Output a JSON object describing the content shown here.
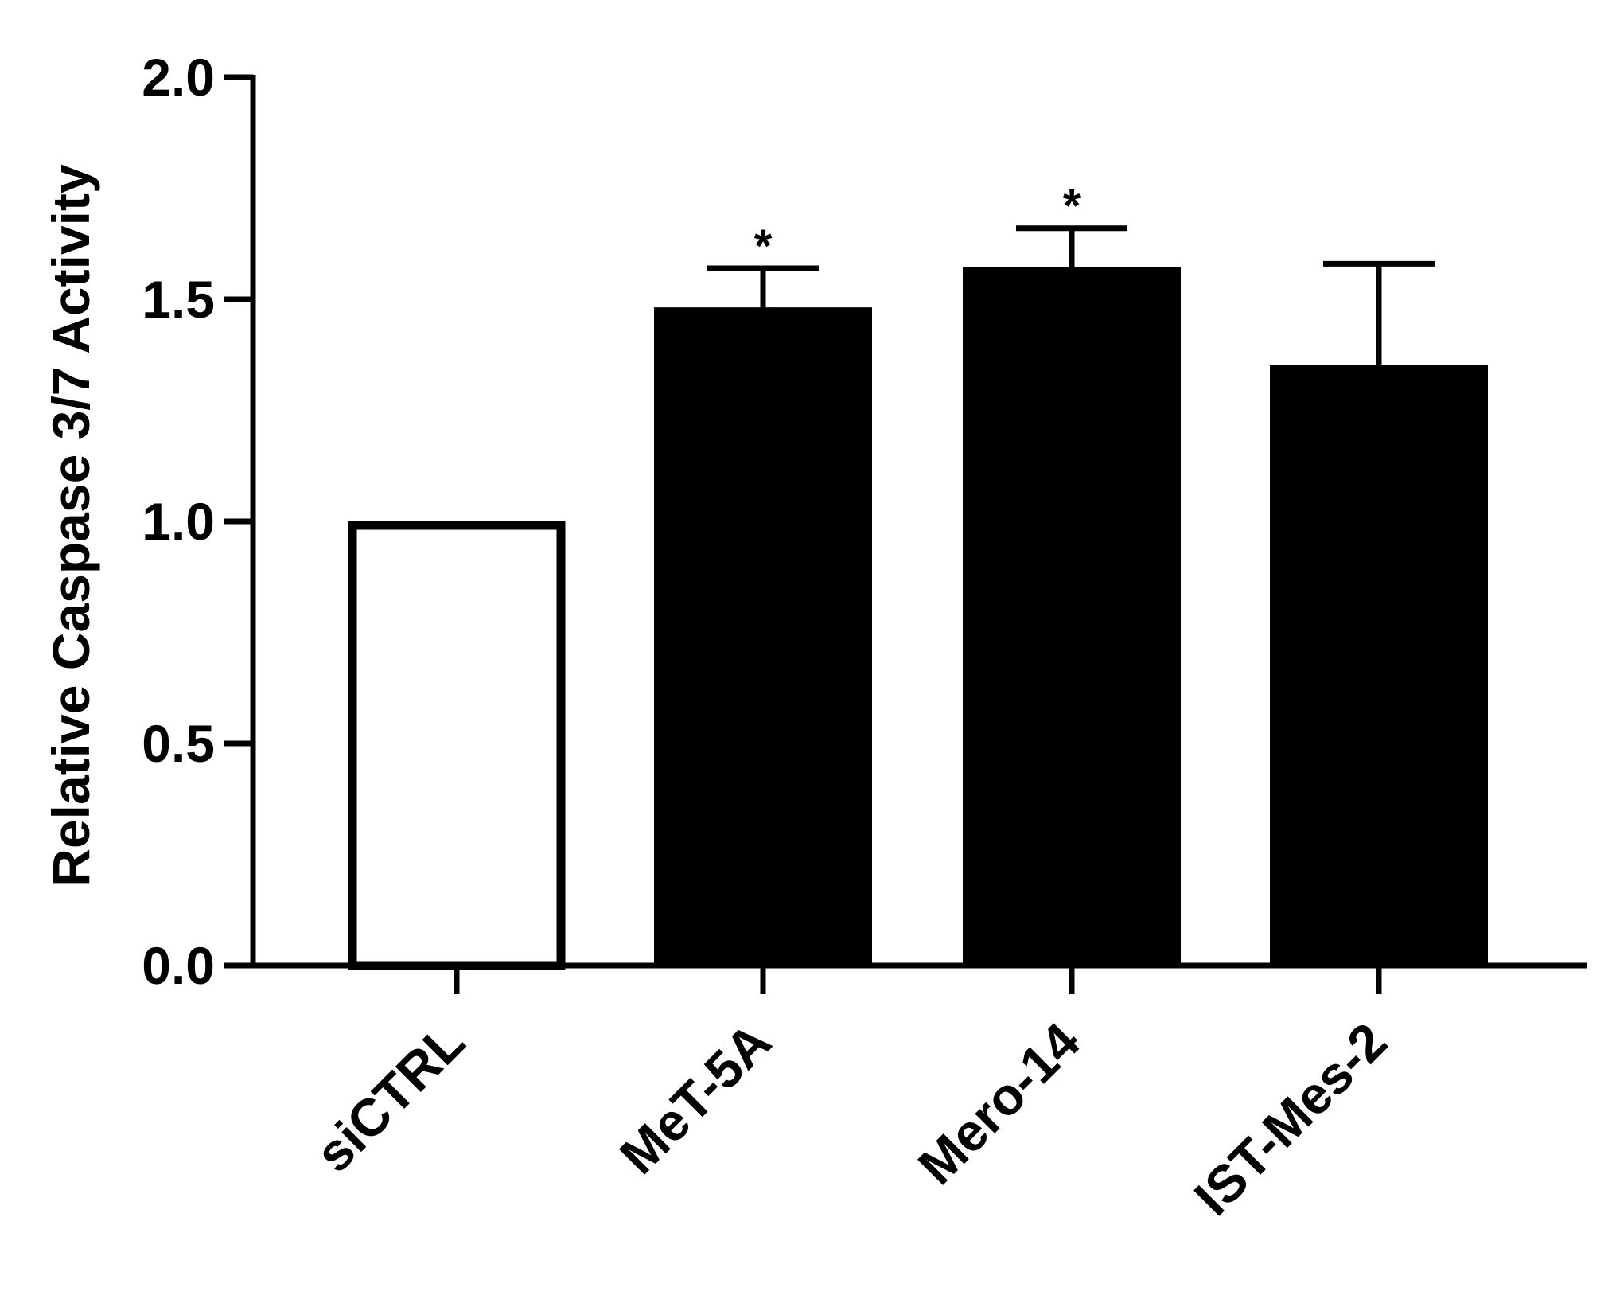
{
  "chart_data": {
    "type": "bar",
    "ylabel": "Relative  Caspase 3/7 Activity",
    "xlabel": "",
    "ylim": [
      0,
      2.0
    ],
    "yticks": [
      0.0,
      0.5,
      1.0,
      1.5,
      2.0
    ],
    "ytick_labels": [
      "0.0",
      "0.5",
      "1.0",
      "1.5",
      "2.0"
    ],
    "categories": [
      "siCTRL",
      "MeT-5A",
      "Mero-14",
      "IST-Mes-2"
    ],
    "values": [
      1.0,
      1.48,
      1.57,
      1.35
    ],
    "error_upper": [
      0.0,
      0.09,
      0.09,
      0.23
    ],
    "significance": [
      "",
      "*",
      "*",
      ""
    ],
    "bar_fill": [
      "#ffffff",
      "#000000",
      "#000000",
      "#000000"
    ],
    "bar_outline": "#000000",
    "grid": false,
    "legend": "none"
  }
}
